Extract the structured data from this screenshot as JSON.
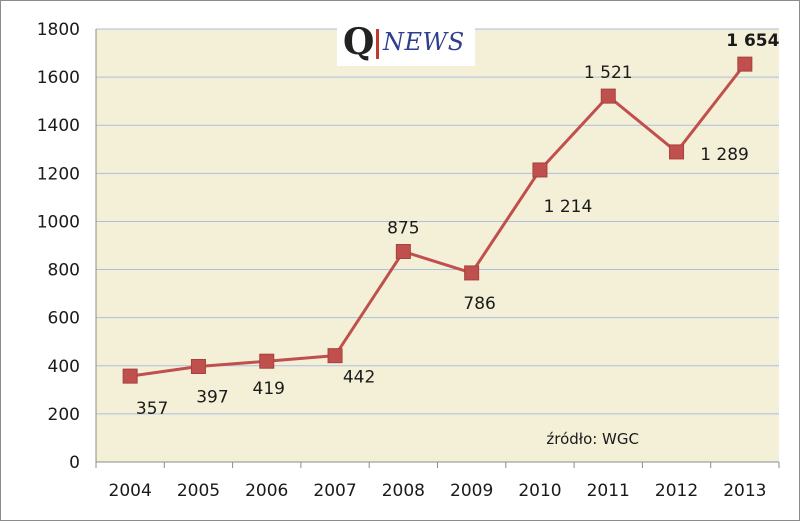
{
  "logo": {
    "letter": "Q",
    "text": "NEWS"
  },
  "chart_data": {
    "type": "line",
    "categories": [
      "2004",
      "2005",
      "2006",
      "2007",
      "2008",
      "2009",
      "2010",
      "2011",
      "2012",
      "2013"
    ],
    "values": [
      357,
      397,
      419,
      442,
      875,
      786,
      1214,
      1521,
      1289,
      1654
    ],
    "data_labels": [
      "357",
      "397",
      "419",
      "442",
      "875",
      "786",
      "1 214",
      "1 521",
      "1 289",
      "1 654"
    ],
    "y_ticks": [
      "0",
      "200",
      "400",
      "600",
      "800",
      "1000",
      "1200",
      "1400",
      "1600",
      "1800"
    ],
    "ylim": [
      0,
      1800
    ],
    "grid": true,
    "line_color": "#c0504d",
    "plot_background": "#f4f0d8",
    "grid_color": "#a9c0e0",
    "source": "źródło: WGC"
  }
}
